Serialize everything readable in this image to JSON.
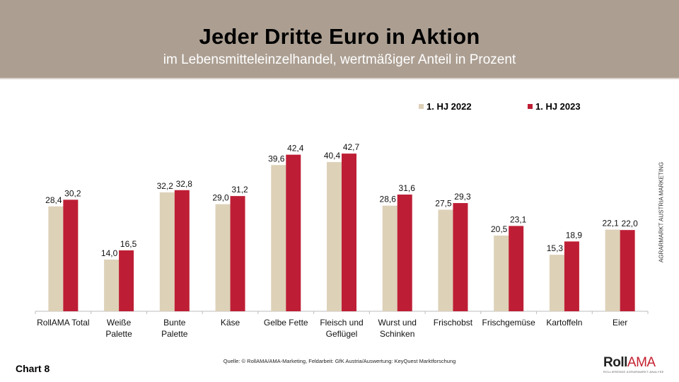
{
  "header": {
    "title": "Jeder Dritte Euro in Aktion",
    "subtitle": "im Lebensmitteleinzelhandel, wertmäßiger Anteil in Prozent"
  },
  "colors": {
    "header_bg": "#ac9f92",
    "series_2022": "#ddd1b8",
    "series_2023": "#be1e35"
  },
  "chart_data": {
    "type": "bar",
    "title": "Jeder Dritte Euro in Aktion",
    "subtitle": "im Lebensmitteleinzelhandel, wertmäßiger Anteil in Prozent",
    "xlabel": "",
    "ylabel": "",
    "ylim": [
      0,
      45
    ],
    "grid": false,
    "legend_position": "top-right",
    "categories": [
      "RollAMA Total",
      "Weiße Palette",
      "Bunte Palette",
      "Käse",
      "Gelbe Fette",
      "Fleisch und Geflügel",
      "Wurst und Schinken",
      "Frischobst",
      "Frischgemüse",
      "Kartoffeln",
      "Eier"
    ],
    "category_lines": [
      [
        "RollAMA Total"
      ],
      [
        "Weiße",
        "Palette"
      ],
      [
        "Bunte",
        "Palette"
      ],
      [
        "Käse"
      ],
      [
        "Gelbe Fette"
      ],
      [
        "Fleisch und",
        "Geflügel"
      ],
      [
        "Wurst und",
        "Schinken"
      ],
      [
        "Frischobst"
      ],
      [
        "Frischgemüse"
      ],
      [
        "Kartoffeln"
      ],
      [
        "Eier"
      ]
    ],
    "series": [
      {
        "name": "1. HJ 2022",
        "values": [
          28.4,
          14.0,
          32.2,
          29.0,
          39.6,
          40.4,
          28.6,
          27.5,
          20.5,
          15.3,
          22.1
        ],
        "labels": [
          "28,4",
          "14,0",
          "32,2",
          "29,0",
          "39,6",
          "40,4",
          "28,6",
          "27,5",
          "20,5",
          "15,3",
          "22,1"
        ]
      },
      {
        "name": "1. HJ 2023",
        "values": [
          30.2,
          16.5,
          32.8,
          31.2,
          42.4,
          42.7,
          31.6,
          29.3,
          23.1,
          18.9,
          22.0
        ],
        "labels": [
          "30,2",
          "16,5",
          "32,8",
          "31,2",
          "42,4",
          "42,7",
          "31,6",
          "29,3",
          "23,1",
          "18,9",
          "22,0"
        ]
      }
    ]
  },
  "legend": {
    "items": [
      {
        "label": "1. HJ 2022"
      },
      {
        "label": "1. HJ 2023"
      }
    ]
  },
  "side_label": "AGRARMARKT AUSTRIA MARKETING",
  "footer": {
    "chart_number": "Chart 8",
    "source": "Quelle: © RollAMA/AMA-Marketing, Feldarbeit: GfK Austria/Auswertung: KeyQuest Marktforschung",
    "logo_roll": "Roll",
    "logo_ama": "AMA",
    "logo_tagline": "ROLLIERENDE AGRARMARKT-ANALYSE"
  }
}
